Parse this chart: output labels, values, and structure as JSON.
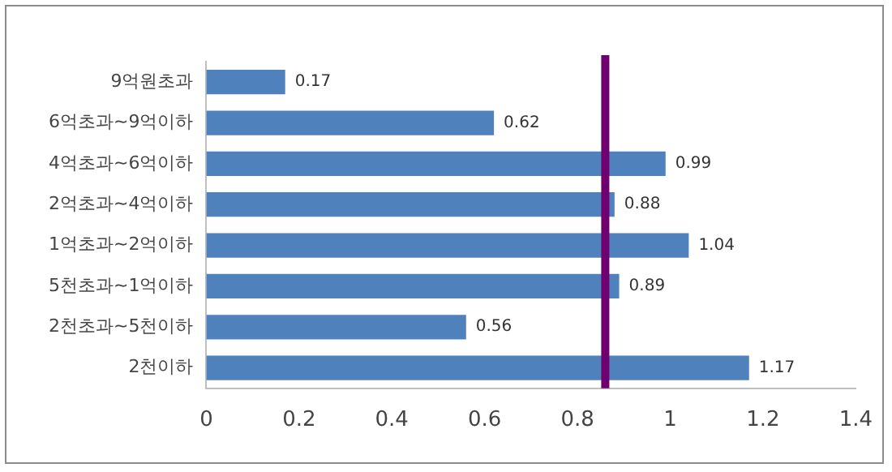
{
  "chart_data": {
    "type": "bar",
    "orientation": "horizontal",
    "categories": [
      "9억원초과",
      "6억초과~9억이하",
      "4억초과~6억이하",
      "2억초과~4억이하",
      "1억초과~2억이하",
      "5천초과~1억이하",
      "2천초과~5천이하",
      "2천이하"
    ],
    "values": [
      0.17,
      0.62,
      0.99,
      0.88,
      1.04,
      0.89,
      0.56,
      1.17
    ],
    "color": "#4f81bd",
    "xlim": [
      0,
      1.4
    ],
    "xticks": [
      0,
      0.2,
      0.4,
      0.6,
      0.8,
      1,
      1.2,
      1.4
    ],
    "grid": false,
    "legend": false,
    "data_labels": true,
    "ref_lines": [
      {
        "axis": "x",
        "value": 0.86,
        "color": "#70006f"
      }
    ]
  }
}
